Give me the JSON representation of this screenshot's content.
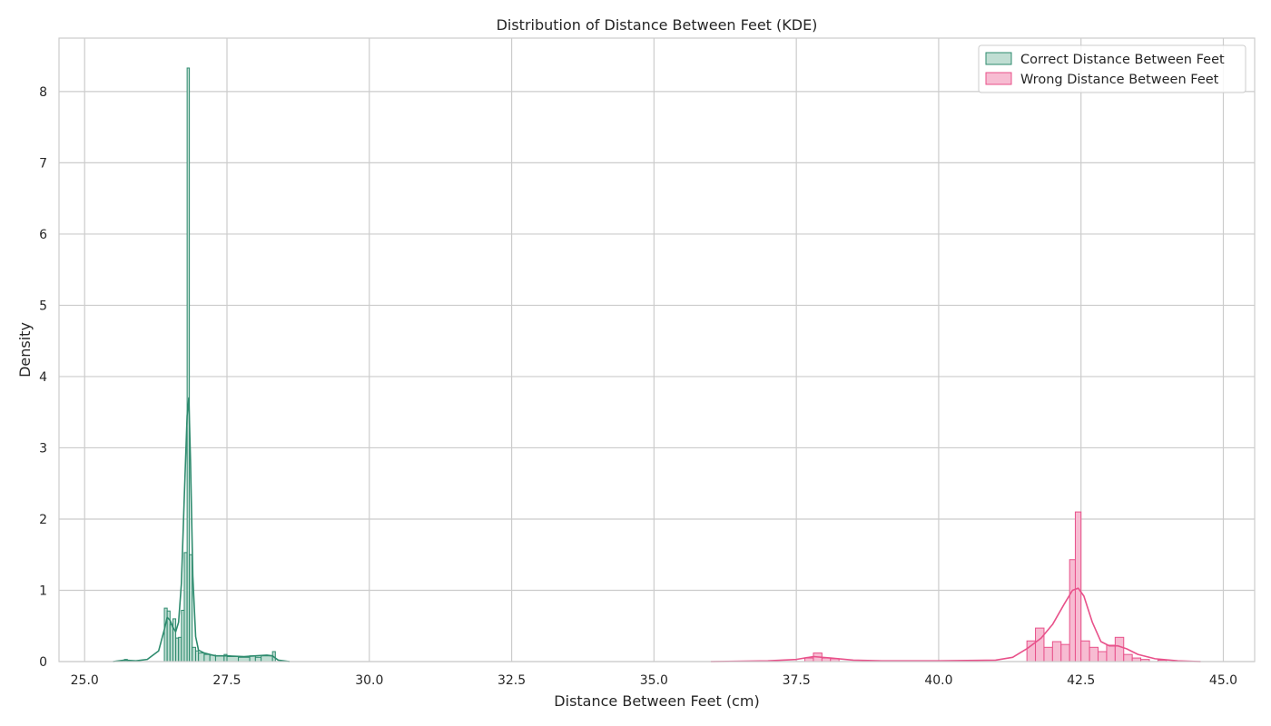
{
  "chart_data": {
    "type": "histogram",
    "title": "Distribution of Distance Between Feet (KDE)",
    "xlabel": "Distance Between Feet (cm)",
    "ylabel": "Density",
    "xlim": [
      24.55,
      45.55
    ],
    "ylim": [
      0,
      8.75
    ],
    "xticks": [
      25.0,
      27.5,
      30.0,
      32.5,
      35.0,
      37.5,
      40.0,
      42.5,
      45.0
    ],
    "xtick_labels": [
      "25.0",
      "27.5",
      "30.0",
      "32.5",
      "35.0",
      "37.5",
      "40.0",
      "42.5",
      "45.0"
    ],
    "yticks": [
      0,
      1,
      2,
      3,
      4,
      5,
      6,
      7,
      8
    ],
    "ytick_labels": [
      "0",
      "1",
      "2",
      "3",
      "4",
      "5",
      "6",
      "7",
      "8"
    ],
    "grid": true,
    "legend_position": "top-right",
    "series": [
      {
        "name": "Correct Distance Between Feet",
        "color": "#2e8b6e",
        "fill": "#c0ded3",
        "bins": [
          [
            25.7,
            25.75,
            0.03
          ],
          [
            26.4,
            26.45,
            0.75
          ],
          [
            26.45,
            26.5,
            0.71
          ],
          [
            26.5,
            26.55,
            0.52
          ],
          [
            26.55,
            26.6,
            0.6
          ],
          [
            26.6,
            26.65,
            0.33
          ],
          [
            26.65,
            26.7,
            0.34
          ],
          [
            26.7,
            26.75,
            0.72
          ],
          [
            26.75,
            26.8,
            1.53
          ],
          [
            26.8,
            26.84,
            8.33
          ],
          [
            26.84,
            26.89,
            1.5
          ],
          [
            26.89,
            26.95,
            0.2
          ],
          [
            26.95,
            27.0,
            0.15
          ],
          [
            27.0,
            27.1,
            0.12
          ],
          [
            27.1,
            27.2,
            0.1
          ],
          [
            27.2,
            27.3,
            0.09
          ],
          [
            27.3,
            27.45,
            0.08
          ],
          [
            27.45,
            27.5,
            0.1
          ],
          [
            27.5,
            27.7,
            0.07
          ],
          [
            27.7,
            27.9,
            0.06
          ],
          [
            27.9,
            28.0,
            0.08
          ],
          [
            28.0,
            28.1,
            0.06
          ],
          [
            28.1,
            28.3,
            0.08
          ],
          [
            28.3,
            28.35,
            0.14
          ]
        ],
        "kde_x": [
          25.5,
          25.7,
          25.9,
          26.1,
          26.3,
          26.4,
          26.45,
          26.5,
          26.55,
          26.6,
          26.65,
          26.7,
          26.75,
          26.8,
          26.83,
          26.86,
          26.9,
          26.95,
          27.0,
          27.1,
          27.3,
          27.5,
          27.8,
          28.0,
          28.2,
          28.3,
          28.4,
          28.6
        ],
        "kde_y": [
          0.0,
          0.02,
          0.01,
          0.03,
          0.15,
          0.45,
          0.62,
          0.58,
          0.48,
          0.42,
          0.55,
          1.1,
          2.3,
          3.45,
          3.7,
          2.8,
          1.2,
          0.35,
          0.16,
          0.12,
          0.08,
          0.08,
          0.07,
          0.08,
          0.09,
          0.08,
          0.02,
          0.0
        ]
      },
      {
        "name": "Wrong Distance Between Feet",
        "color": "#e8518a",
        "fill": "#f7bcd2",
        "bins": [
          [
            37.65,
            37.8,
            0.05
          ],
          [
            37.8,
            37.95,
            0.12
          ],
          [
            37.95,
            38.1,
            0.05
          ],
          [
            38.1,
            38.25,
            0.04
          ],
          [
            41.55,
            41.7,
            0.29
          ],
          [
            41.7,
            41.85,
            0.47
          ],
          [
            41.85,
            42.0,
            0.2
          ],
          [
            42.0,
            42.15,
            0.28
          ],
          [
            42.15,
            42.3,
            0.24
          ],
          [
            42.3,
            42.4,
            1.43
          ],
          [
            42.4,
            42.5,
            2.1
          ],
          [
            42.5,
            42.65,
            0.29
          ],
          [
            42.65,
            42.8,
            0.2
          ],
          [
            42.8,
            42.95,
            0.14
          ],
          [
            42.95,
            43.1,
            0.23
          ],
          [
            43.1,
            43.25,
            0.34
          ],
          [
            43.25,
            43.4,
            0.1
          ],
          [
            43.4,
            43.55,
            0.05
          ],
          [
            43.55,
            43.7,
            0.03
          ],
          [
            43.85,
            44.0,
            0.02
          ]
        ],
        "kde_x": [
          36.0,
          37.0,
          37.5,
          37.8,
          38.1,
          38.5,
          39.0,
          40.0,
          41.0,
          41.3,
          41.55,
          41.8,
          42.0,
          42.2,
          42.35,
          42.45,
          42.55,
          42.7,
          42.85,
          43.0,
          43.15,
          43.3,
          43.5,
          43.8,
          44.2,
          44.6
        ],
        "kde_y": [
          0.0,
          0.01,
          0.03,
          0.07,
          0.05,
          0.02,
          0.01,
          0.01,
          0.02,
          0.06,
          0.18,
          0.33,
          0.52,
          0.8,
          1.0,
          1.03,
          0.92,
          0.55,
          0.28,
          0.22,
          0.22,
          0.18,
          0.1,
          0.04,
          0.01,
          0.0
        ]
      }
    ]
  }
}
